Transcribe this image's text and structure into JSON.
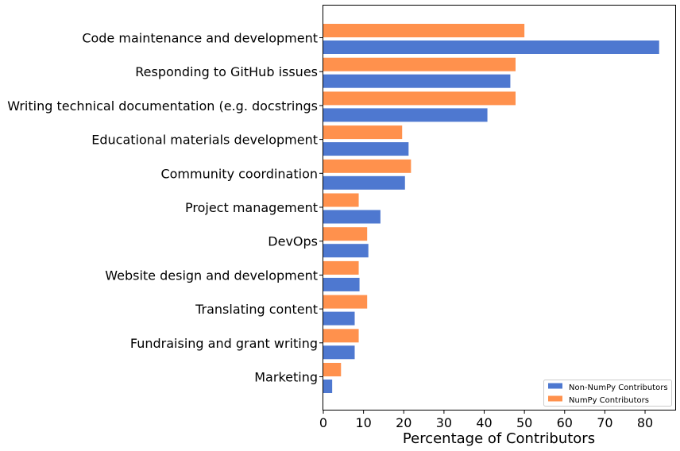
{
  "chart_data": {
    "type": "bar",
    "orientation": "horizontal",
    "categories": [
      "Code maintenance and development",
      "Responding to GitHub issues",
      "Writing technical documentation (e.g. docstrings",
      "Educational materials development",
      "Community coordination",
      "Project management",
      "DevOps",
      "Website design and development",
      "Translating content",
      "Fundraising and grant writing",
      "Marketing"
    ],
    "series": [
      {
        "name": "Non-NumPy Contributors",
        "color": "#4e78d0",
        "values": [
          83.5,
          46.5,
          40.8,
          21.2,
          20.3,
          14.2,
          11.2,
          9.0,
          7.8,
          7.8,
          2.2
        ]
      },
      {
        "name": "NumPy Contributors",
        "color": "#ff914d",
        "values": [
          50.0,
          47.8,
          47.8,
          19.6,
          21.8,
          8.8,
          10.9,
          8.8,
          10.9,
          8.8,
          4.4
        ]
      }
    ],
    "xlabel": "Percentage of Contributors",
    "ylabel": "",
    "title": "",
    "xlim": [
      0,
      87.5
    ],
    "xticks": [
      0,
      10,
      20,
      30,
      40,
      50,
      60,
      70,
      80
    ],
    "grid": false,
    "legend_position": "bottom-right"
  }
}
